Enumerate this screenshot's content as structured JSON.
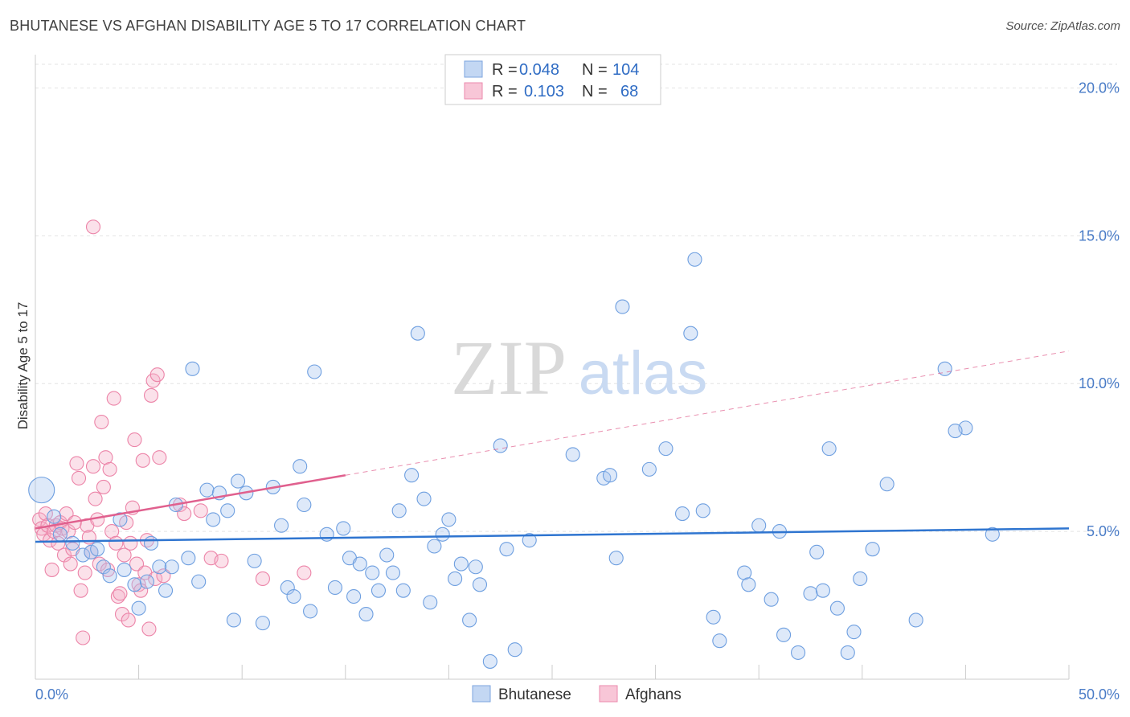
{
  "header": {
    "title": "BHUTANESE VS AFGHAN DISABILITY AGE 5 TO 17 CORRELATION CHART",
    "source": "Source: ZipAtlas.com"
  },
  "watermark": {
    "zip": "ZIP",
    "atlas": "atlas"
  },
  "legend": {
    "rows": [
      {
        "r_label": "R =",
        "r_value": "0.048",
        "n_label": "N =",
        "n_value": "104",
        "color": "#a9c6ef"
      },
      {
        "r_label": "R =",
        "r_value": "0.103",
        "n_label": "N =",
        "n_value": "68",
        "color": "#f5b1c8"
      }
    ]
  },
  "bottom_legend": [
    {
      "label": "Bhutanese",
      "color": "#a9c6ef"
    },
    {
      "label": "Afghans",
      "color": "#f5b1c8"
    }
  ],
  "chart_data": {
    "type": "scatter",
    "ylabel": "Disability Age 5 to 17",
    "xlim": [
      0,
      50
    ],
    "ylim": [
      0,
      20.8
    ],
    "x_tick_labels": [
      "0.0%",
      "50.0%"
    ],
    "y_ticks": [
      5,
      10,
      15,
      20
    ],
    "y_tick_labels": [
      "5.0%",
      "10.0%",
      "15.0%",
      "20.0%"
    ],
    "grid": true,
    "colors": {
      "bhutanese": "#6e9fe0",
      "afghans": "#ec84a8",
      "blue_line": "#2f75d0",
      "pink_line": "#e0608e"
    },
    "series": [
      {
        "name": "Bhutanese",
        "trend": {
          "x": [
            0,
            50
          ],
          "y": [
            4.65,
            5.1
          ]
        },
        "points": [
          [
            0.3,
            6.4
          ],
          [
            0.9,
            5.5
          ],
          [
            1.2,
            4.9
          ],
          [
            1.8,
            4.6
          ],
          [
            2.3,
            4.2
          ],
          [
            2.7,
            4.3
          ],
          [
            3.0,
            4.4
          ],
          [
            3.3,
            3.8
          ],
          [
            3.6,
            3.5
          ],
          [
            4.1,
            5.4
          ],
          [
            4.3,
            3.7
          ],
          [
            4.8,
            3.2
          ],
          [
            5.0,
            2.4
          ],
          [
            5.4,
            3.3
          ],
          [
            5.6,
            4.6
          ],
          [
            6.0,
            3.8
          ],
          [
            6.3,
            3.0
          ],
          [
            6.6,
            3.8
          ],
          [
            6.8,
            5.9
          ],
          [
            7.4,
            4.1
          ],
          [
            7.6,
            10.5
          ],
          [
            7.9,
            3.3
          ],
          [
            8.3,
            6.4
          ],
          [
            8.6,
            5.4
          ],
          [
            8.9,
            6.3
          ],
          [
            9.3,
            5.7
          ],
          [
            9.6,
            2.0
          ],
          [
            9.8,
            6.7
          ],
          [
            10.2,
            6.3
          ],
          [
            10.6,
            4.0
          ],
          [
            11.0,
            1.9
          ],
          [
            11.5,
            6.5
          ],
          [
            11.9,
            5.2
          ],
          [
            12.2,
            3.1
          ],
          [
            12.5,
            2.8
          ],
          [
            12.8,
            7.2
          ],
          [
            13.0,
            5.9
          ],
          [
            13.3,
            2.3
          ],
          [
            13.5,
            10.4
          ],
          [
            14.1,
            4.9
          ],
          [
            14.5,
            3.1
          ],
          [
            14.9,
            5.1
          ],
          [
            15.2,
            4.1
          ],
          [
            15.4,
            2.8
          ],
          [
            15.7,
            3.9
          ],
          [
            16.0,
            2.2
          ],
          [
            16.3,
            3.6
          ],
          [
            16.6,
            3.0
          ],
          [
            17.0,
            4.2
          ],
          [
            17.3,
            3.6
          ],
          [
            17.6,
            5.7
          ],
          [
            17.8,
            3.0
          ],
          [
            18.2,
            6.9
          ],
          [
            18.5,
            11.7
          ],
          [
            18.8,
            6.1
          ],
          [
            19.1,
            2.6
          ],
          [
            19.3,
            4.5
          ],
          [
            19.7,
            4.9
          ],
          [
            20.0,
            5.4
          ],
          [
            20.3,
            3.4
          ],
          [
            20.6,
            3.9
          ],
          [
            21.0,
            2.0
          ],
          [
            21.3,
            3.8
          ],
          [
            21.5,
            3.2
          ],
          [
            22.0,
            0.6
          ],
          [
            22.5,
            7.9
          ],
          [
            22.8,
            4.4
          ],
          [
            23.2,
            1.0
          ],
          [
            23.9,
            4.7
          ],
          [
            26.0,
            7.6
          ],
          [
            27.5,
            6.8
          ],
          [
            27.8,
            6.9
          ],
          [
            28.1,
            4.1
          ],
          [
            28.4,
            12.6
          ],
          [
            29.7,
            7.1
          ],
          [
            30.5,
            7.8
          ],
          [
            31.3,
            5.6
          ],
          [
            31.7,
            11.7
          ],
          [
            31.9,
            14.2
          ],
          [
            32.3,
            5.7
          ],
          [
            32.8,
            2.1
          ],
          [
            33.1,
            1.3
          ],
          [
            34.3,
            3.6
          ],
          [
            34.5,
            3.2
          ],
          [
            35.0,
            5.2
          ],
          [
            35.6,
            2.7
          ],
          [
            36.0,
            5.0
          ],
          [
            36.2,
            1.5
          ],
          [
            36.9,
            0.9
          ],
          [
            37.5,
            2.9
          ],
          [
            37.8,
            4.3
          ],
          [
            38.1,
            3.0
          ],
          [
            38.4,
            7.8
          ],
          [
            38.8,
            2.4
          ],
          [
            39.3,
            0.9
          ],
          [
            39.6,
            1.6
          ],
          [
            39.9,
            3.4
          ],
          [
            40.5,
            4.4
          ],
          [
            41.2,
            6.6
          ],
          [
            42.6,
            2.0
          ],
          [
            44.0,
            10.5
          ],
          [
            45.0,
            8.5
          ],
          [
            46.3,
            4.9
          ],
          [
            44.5,
            8.4
          ]
        ]
      },
      {
        "name": "Afghans",
        "trend": {
          "x": [
            0,
            15
          ],
          "y": [
            5.1,
            6.9
          ]
        },
        "trend_extension": {
          "x": [
            15,
            50
          ],
          "y": [
            6.9,
            11.1
          ]
        },
        "points": [
          [
            0.2,
            5.4
          ],
          [
            0.3,
            5.1
          ],
          [
            0.4,
            4.9
          ],
          [
            0.5,
            5.6
          ],
          [
            0.6,
            5.2
          ],
          [
            0.7,
            4.7
          ],
          [
            0.8,
            3.7
          ],
          [
            0.9,
            5.0
          ],
          [
            1.0,
            5.2
          ],
          [
            1.1,
            4.6
          ],
          [
            1.2,
            5.3
          ],
          [
            1.3,
            5.1
          ],
          [
            1.4,
            4.2
          ],
          [
            1.5,
            5.6
          ],
          [
            1.6,
            5.0
          ],
          [
            1.7,
            3.9
          ],
          [
            1.8,
            4.4
          ],
          [
            1.9,
            5.3
          ],
          [
            2.0,
            7.3
          ],
          [
            2.1,
            6.8
          ],
          [
            2.2,
            3.0
          ],
          [
            2.3,
            1.4
          ],
          [
            2.4,
            3.6
          ],
          [
            2.5,
            5.2
          ],
          [
            2.6,
            4.8
          ],
          [
            2.7,
            4.3
          ],
          [
            2.8,
            7.2
          ],
          [
            2.9,
            6.1
          ],
          [
            3.0,
            5.4
          ],
          [
            3.1,
            3.9
          ],
          [
            3.2,
            8.7
          ],
          [
            3.3,
            6.5
          ],
          [
            3.4,
            7.5
          ],
          [
            3.5,
            3.7
          ],
          [
            3.6,
            7.1
          ],
          [
            3.7,
            5.0
          ],
          [
            3.8,
            9.5
          ],
          [
            3.9,
            4.6
          ],
          [
            4.0,
            2.8
          ],
          [
            4.1,
            2.9
          ],
          [
            4.2,
            2.2
          ],
          [
            4.3,
            4.2
          ],
          [
            4.4,
            5.3
          ],
          [
            4.5,
            2.0
          ],
          [
            4.6,
            4.6
          ],
          [
            4.7,
            5.8
          ],
          [
            4.8,
            8.1
          ],
          [
            4.9,
            3.9
          ],
          [
            5.0,
            3.2
          ],
          [
            5.1,
            3.0
          ],
          [
            5.2,
            7.4
          ],
          [
            5.3,
            3.6
          ],
          [
            5.4,
            4.7
          ],
          [
            5.5,
            1.7
          ],
          [
            5.6,
            9.6
          ],
          [
            5.7,
            10.1
          ],
          [
            5.8,
            3.4
          ],
          [
            5.9,
            10.3
          ],
          [
            6.0,
            7.5
          ],
          [
            6.2,
            3.5
          ],
          [
            7.0,
            5.9
          ],
          [
            7.2,
            5.6
          ],
          [
            8.0,
            5.7
          ],
          [
            8.5,
            4.1
          ],
          [
            9.0,
            4.0
          ],
          [
            11.0,
            3.4
          ],
          [
            13.0,
            3.6
          ],
          [
            2.8,
            15.3
          ]
        ]
      }
    ]
  }
}
